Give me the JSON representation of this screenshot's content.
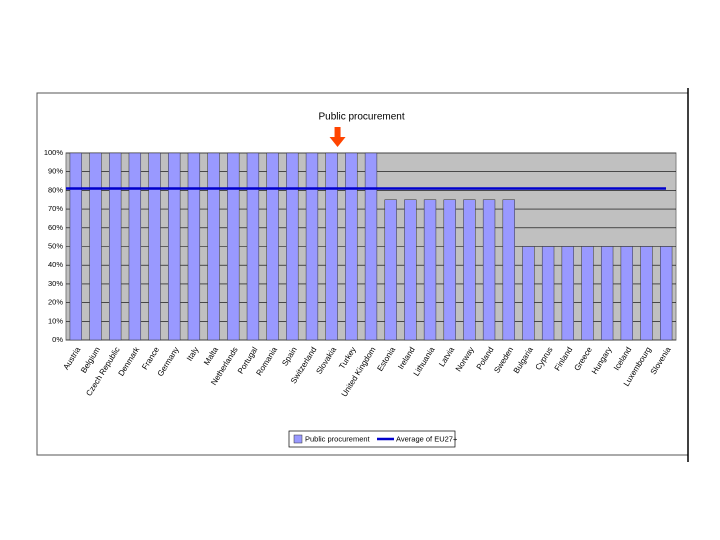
{
  "chart_data": {
    "type": "bar",
    "annotation": "Public procurement",
    "categories": [
      "Austria",
      "Belgium",
      "Czech Republic",
      "Denmark",
      "France",
      "Germany",
      "Italy",
      "Malta",
      "Netherlands",
      "Portugal",
      "Romania",
      "Spain",
      "Switzerland",
      "Slovakia",
      "Turkey",
      "United Kingdom",
      "Estonia",
      "Ireland",
      "Lithuania",
      "Latvia",
      "Norway",
      "Poland",
      "Sweden",
      "Bulgaria",
      "Cyprus",
      "Finland",
      "Greece",
      "Hungary",
      "Iceland",
      "Luxembourg",
      "Slovenia"
    ],
    "series": [
      {
        "name": "Public procurement",
        "color": "#9999ff",
        "values": [
          100,
          100,
          100,
          100,
          100,
          100,
          100,
          100,
          100,
          100,
          100,
          100,
          100,
          100,
          100,
          100,
          75,
          75,
          75,
          75,
          75,
          75,
          75,
          50,
          50,
          50,
          50,
          50,
          50,
          50,
          50
        ]
      },
      {
        "name": "Average of EU27+",
        "color": "#0000cc",
        "type": "line",
        "values": [
          81,
          81,
          81,
          81,
          81,
          81,
          81,
          81,
          81,
          81,
          81,
          81,
          81,
          81,
          81,
          81,
          81,
          81,
          81,
          81,
          81,
          81,
          81,
          81,
          81,
          81,
          81,
          81,
          81,
          81,
          81
        ]
      }
    ],
    "ylim": [
      0,
      100
    ],
    "yticks": [
      {
        "value": 0,
        "label": "0%"
      },
      {
        "value": 10,
        "label": "10%"
      },
      {
        "value": 20,
        "label": "20%"
      },
      {
        "value": 30,
        "label": "30%"
      },
      {
        "value": 40,
        "label": "40%"
      },
      {
        "value": 50,
        "label": "50%"
      },
      {
        "value": 60,
        "label": "60%"
      },
      {
        "value": 70,
        "label": "70%"
      },
      {
        "value": 80,
        "label": "80%"
      },
      {
        "value": 90,
        "label": "90%"
      },
      {
        "value": 100,
        "label": "100%"
      }
    ],
    "grid": true,
    "annotation_index": 13,
    "legend": "bottom"
  }
}
